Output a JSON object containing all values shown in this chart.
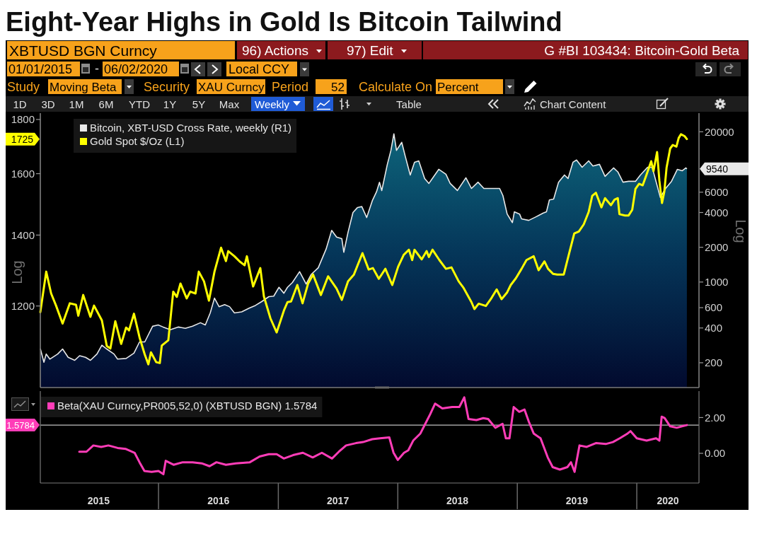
{
  "chart_data": [
    {
      "type": "area",
      "title": "Eight-Year Highs in Gold Is Bitcoin Tailwind",
      "subtitle": "G #BI 103434: Bitcoin-Gold Beta",
      "annotations": [
        "XBTUSD BGN Curncy",
        "96) Actions",
        "97) Edit",
        "01/01/2015",
        "-",
        "06/02/2020",
        "Local CCY",
        "Study",
        "Moving Beta",
        "Security",
        "XAU Curncy",
        "Period",
        "52",
        "Calculate On",
        "Percent",
        "1D",
        "3D",
        "1M",
        "6M",
        "YTD",
        "1Y",
        "5Y",
        "Max",
        "Weekly",
        "Table",
        "Chart Content"
      ],
      "xlim": [
        "2015-01-05",
        "2020-07-09"
      ],
      "tick_labels": "y",
      "ylim": [
        122,
        29000
      ],
      "yticks": [
        200,
        400,
        600,
        1000,
        2000,
        4000,
        6000,
        9540,
        20000
      ],
      "ylabel": "Log",
      "log": true,
      "legend": "top left",
      "series": [
        {
          "name": "Bitcoin, XBT-USD Cross Rate, weekly (R1)",
          "color": "#e8e8e8",
          "x": [
            "2015-01-05",
            "2015-01-16",
            "2015-01-23",
            "2015-02-03",
            "2015-02-27",
            "2015-03-14",
            "2015-03-31",
            "2015-04-20",
            "2015-05-05",
            "2015-05-23",
            "2015-06-07",
            "2015-06-27",
            "2015-07-12",
            "2015-07-27",
            "2015-08-18",
            "2015-08-29",
            "2015-09-24",
            "2015-10-18",
            "2015-11-04",
            "2015-11-20",
            "2015-12-14",
            "2015-12-31",
            "2016-01-15",
            "2016-02-06",
            "2016-03-01",
            "2016-03-23",
            "2016-04-14",
            "2016-05-08",
            "2016-05-23",
            "2016-06-07",
            "2016-06-20",
            "2016-07-04",
            "2016-07-21",
            "2016-08-05",
            "2016-08-20",
            "2016-09-11",
            "2016-10-05",
            "2016-10-23",
            "2016-11-11",
            "2016-12-03",
            "2016-12-18",
            "2017-01-03",
            "2017-01-18",
            "2017-01-29",
            "2017-02-13",
            "2017-03-07",
            "2017-03-27",
            "2017-04-11",
            "2017-05-03",
            "2017-05-27",
            "2017-06-13",
            "2017-06-28",
            "2017-07-14",
            "2017-07-20",
            "2017-08-02",
            "2017-08-17",
            "2017-08-31",
            "2017-09-13",
            "2017-09-28",
            "2017-10-15",
            "2017-10-28",
            "2017-11-06",
            "2017-11-13",
            "2017-11-30",
            "2017-12-11",
            "2017-12-20",
            "2017-12-28",
            "2018-01-13",
            "2018-01-24",
            "2018-02-08",
            "2018-02-21",
            "2018-03-06",
            "2018-03-24",
            "2018-04-06",
            "2018-05-06",
            "2018-05-28",
            "2018-06-10",
            "2018-07-02",
            "2018-07-28",
            "2018-08-14",
            "2018-09-03",
            "2018-09-21",
            "2018-10-12",
            "2018-11-08",
            "2018-11-18",
            "2018-12-01",
            "2018-12-17",
            "2018-12-23",
            "2019-01-08",
            "2019-01-14",
            "2019-02-05",
            "2019-02-27",
            "2019-03-20",
            "2019-03-31",
            "2019-04-09",
            "2019-04-22",
            "2019-05-07",
            "2019-05-25",
            "2019-06-05",
            "2019-06-20",
            "2019-07-01",
            "2019-07-18",
            "2019-08-07",
            "2019-08-20",
            "2019-09-09",
            "2019-09-26",
            "2019-10-22",
            "2019-11-04",
            "2019-11-20",
            "2019-12-07",
            "2019-12-28",
            "2020-01-12",
            "2020-02-03",
            "2020-02-17",
            "2020-03-13",
            "2020-03-29",
            "2020-04-16",
            "2020-05-04",
            "2020-05-19",
            "2020-05-30",
            "2020-06-02"
          ],
          "values": [
            265,
            202,
            238,
            215,
            238,
            263,
            223,
            210,
            230,
            223,
            210,
            238,
            284,
            263,
            238,
            215,
            218,
            242,
            303,
            303,
            414,
            425,
            408,
            386,
            408,
            397,
            414,
            444,
            425,
            540,
            725,
            612,
            637,
            612,
            540,
            551,
            596,
            627,
            677,
            747,
            755,
            900,
            800,
            900,
            990,
            1230,
            960,
            1160,
            1330,
            1930,
            2800,
            2450,
            2370,
            1810,
            2700,
            4000,
            4420,
            4500,
            3620,
            5050,
            6050,
            7300,
            6200,
            10450,
            13800,
            19200,
            13800,
            16200,
            12200,
            8450,
            10900,
            11200,
            7880,
            7140,
            9460,
            8570,
            7140,
            6200,
            7990,
            6460,
            7320,
            6460,
            6460,
            6460,
            5610,
            3880,
            3270,
            4050,
            3880,
            3520,
            3420,
            3670,
            3940,
            4050,
            5140,
            5230,
            7320,
            8450,
            7880,
            10900,
            11400,
            9860,
            11200,
            10100,
            10450,
            8220,
            9730,
            9000,
            7320,
            7450,
            7450,
            8450,
            9860,
            9860,
            5400,
            6460,
            7450,
            9460,
            9200,
            9730,
            9540
          ]
        }
      ]
    },
    {
      "type": "line",
      "xlim": [
        "2015-01-05",
        "2020-07-09"
      ],
      "tick_labels": "y",
      "ylim": [
        1005,
        1825
      ],
      "yticks": [
        1200,
        1400,
        1600,
        1725,
        1800
      ],
      "ylabel": "Log",
      "log": true,
      "legend": "top left",
      "series": [
        {
          "name": "Gold Spot $/Oz (L1)",
          "color": "#ffff00",
          "x": [
            "2015-01-05",
            "2015-01-23",
            "2015-02-07",
            "2015-02-22",
            "2015-03-14",
            "2015-04-05",
            "2015-04-24",
            "2015-05-01",
            "2015-05-16",
            "2015-06-07",
            "2015-06-18",
            "2015-07-12",
            "2015-07-27",
            "2015-08-07",
            "2015-08-22",
            "2015-09-09",
            "2015-09-24",
            "2015-10-03",
            "2015-10-18",
            "2015-11-04",
            "2015-11-20",
            "2015-12-01",
            "2015-12-09",
            "2015-12-25",
            "2016-01-05",
            "2016-01-11",
            "2016-01-31",
            "2016-02-15",
            "2016-02-26",
            "2016-03-08",
            "2016-03-27",
            "2016-04-07",
            "2016-04-23",
            "2016-05-03",
            "2016-05-19",
            "2016-06-03",
            "2016-06-20",
            "2016-07-10",
            "2016-07-25",
            "2016-08-01",
            "2016-08-20",
            "2016-09-05",
            "2016-09-20",
            "2016-09-27",
            "2016-10-16",
            "2016-11-07",
            "2016-11-18",
            "2016-12-08",
            "2016-12-27",
            "2017-01-18",
            "2017-01-29",
            "2017-02-09",
            "2017-02-28",
            "2017-03-16",
            "2017-04-02",
            "2017-04-17",
            "2017-05-11",
            "2017-06-02",
            "2017-06-28",
            "2017-07-14",
            "2017-08-02",
            "2017-08-20",
            "2017-09-15",
            "2017-10-04",
            "2017-10-17",
            "2017-11-04",
            "2017-11-24",
            "2017-12-15",
            "2018-01-02",
            "2018-01-19",
            "2018-02-04",
            "2018-02-14",
            "2018-02-21",
            "2018-03-15",
            "2018-03-30",
            "2018-04-06",
            "2018-04-17",
            "2018-05-08",
            "2018-05-28",
            "2018-06-14",
            "2018-07-06",
            "2018-07-21",
            "2018-08-14",
            "2018-08-23",
            "2018-09-05",
            "2018-09-27",
            "2018-10-12",
            "2018-10-30",
            "2018-11-14",
            "2018-12-01",
            "2018-12-12",
            "2018-12-28",
            "2019-01-14",
            "2019-01-29",
            "2019-02-20",
            "2019-03-07",
            "2019-03-25",
            "2019-04-05",
            "2019-04-20",
            "2019-05-03",
            "2019-05-23",
            "2019-06-09",
            "2019-06-24",
            "2019-07-08",
            "2019-07-23",
            "2019-08-07",
            "2019-08-18",
            "2019-08-29",
            "2019-09-15",
            "2019-09-26",
            "2019-10-14",
            "2019-10-25",
            "2019-11-04",
            "2019-11-09",
            "2019-11-26",
            "2019-12-07",
            "2019-12-18",
            "2019-12-28",
            "2020-01-08",
            "2020-01-19",
            "2020-01-30",
            "2020-02-14",
            "2020-02-21",
            "2020-03-03",
            "2020-03-10",
            "2020-03-18",
            "2020-03-25",
            "2020-04-01",
            "2020-04-12",
            "2020-04-20",
            "2020-05-01",
            "2020-05-08",
            "2020-05-15",
            "2020-05-26",
            "2020-06-02"
          ],
          "values": [
            1184,
            1293,
            1233,
            1201,
            1155,
            1207,
            1203,
            1175,
            1229,
            1172,
            1201,
            1163,
            1100,
            1094,
            1161,
            1105,
            1145,
            1138,
            1180,
            1121,
            1080,
            1057,
            1085,
            1062,
            1060,
            1101,
            1114,
            1238,
            1224,
            1260,
            1220,
            1238,
            1233,
            1293,
            1266,
            1214,
            1293,
            1362,
            1323,
            1352,
            1337,
            1322,
            1311,
            1337,
            1252,
            1303,
            1225,
            1168,
            1133,
            1188,
            1210,
            1212,
            1256,
            1207,
            1260,
            1285,
            1229,
            1280,
            1246,
            1216,
            1266,
            1285,
            1346,
            1299,
            1303,
            1273,
            1301,
            1256,
            1307,
            1341,
            1356,
            1326,
            1356,
            1328,
            1352,
            1335,
            1356,
            1326,
            1301,
            1305,
            1266,
            1248,
            1210,
            1192,
            1206,
            1200,
            1218,
            1244,
            1218,
            1236,
            1256,
            1275,
            1301,
            1326,
            1337,
            1297,
            1322,
            1301,
            1287,
            1285,
            1285,
            1348,
            1405,
            1411,
            1433,
            1472,
            1525,
            1535,
            1487,
            1517,
            1494,
            1512,
            1517,
            1465,
            1461,
            1461,
            1479,
            1548,
            1565,
            1560,
            1594,
            1644,
            1609,
            1677,
            1576,
            1501,
            1538,
            1621,
            1690,
            1703,
            1697,
            1729,
            1743,
            1736,
            1725
          ]
        }
      ]
    },
    {
      "type": "line",
      "xlim": [
        "2015-01-05",
        "2020-07-09"
      ],
      "xticks": [
        {
          "value": "2015-07-02",
          "label": "2015"
        },
        {
          "value": "2016-01-01",
          "label": null
        },
        {
          "value": "2016-07-02",
          "label": "2016"
        },
        {
          "value": "2017-01-01",
          "label": null
        },
        {
          "value": "2017-07-02",
          "label": "2017"
        },
        {
          "value": "2018-01-01",
          "label": null
        },
        {
          "value": "2018-07-02",
          "label": "2018"
        },
        {
          "value": "2019-01-01",
          "label": null
        },
        {
          "value": "2019-07-02",
          "label": "2019"
        },
        {
          "value": "2020-01-01",
          "label": null
        },
        {
          "value": "2020-04-05",
          "label": "2020"
        }
      ],
      "ylim": [
        -1.66,
        3.48
      ],
      "yticks": [
        {
          "value": 0,
          "label": "0.00"
        },
        {
          "value": 2,
          "label": "2.00"
        }
      ],
      "ref_lines": [
        {
          "axis": "y",
          "value": 1.5784,
          "label": "1.5784",
          "color": "#c0c0c0"
        }
      ],
      "legend": "top left",
      "series": [
        {
          "name": "Beta(XAU Curncy,PR005,52,0) (XBTUSD BGN) 1.5784",
          "color": "#ff3db8",
          "x": [
            "2015-05-04",
            "2015-05-26",
            "2015-06-16",
            "2015-07-10",
            "2015-08-01",
            "2015-08-29",
            "2015-09-22",
            "2015-10-20",
            "2015-11-04",
            "2015-11-19",
            "2015-12-11",
            "2016-01-01",
            "2016-01-16",
            "2016-01-23",
            "2016-02-16",
            "2016-03-15",
            "2016-04-14",
            "2016-05-12",
            "2016-06-05",
            "2016-06-26",
            "2016-07-25",
            "2016-08-24",
            "2016-10-06",
            "2016-11-05",
            "2016-12-03",
            "2016-12-27",
            "2017-01-18",
            "2017-02-15",
            "2017-03-17",
            "2017-04-16",
            "2017-05-14",
            "2017-06-14",
            "2017-07-05",
            "2017-07-27",
            "2017-08-26",
            "2017-09-17",
            "2017-10-15",
            "2017-11-08",
            "2017-12-06",
            "2017-12-19",
            "2018-01-01",
            "2018-01-20",
            "2018-02-02",
            "2018-02-17",
            "2018-03-11",
            "2018-03-26",
            "2018-04-10",
            "2018-04-25",
            "2018-05-17",
            "2018-06-16",
            "2018-07-08",
            "2018-07-23",
            "2018-08-05",
            "2018-08-29",
            "2018-09-19",
            "2018-10-04",
            "2018-10-26",
            "2018-11-17",
            "2018-11-27",
            "2018-12-08",
            "2018-12-21",
            "2019-01-07",
            "2019-01-23",
            "2019-02-05",
            "2019-02-20",
            "2019-03-13",
            "2019-04-04",
            "2019-04-19",
            "2019-05-11",
            "2019-06-03",
            "2019-06-14",
            "2019-06-25",
            "2019-07-10",
            "2019-08-01",
            "2019-08-29",
            "2019-09-28",
            "2019-10-20",
            "2019-11-10",
            "2019-12-04",
            "2019-12-13",
            "2020-01-01",
            "2020-01-31",
            "2020-02-29",
            "2020-03-10",
            "2020-03-17",
            "2020-03-26",
            "2020-04-12",
            "2020-05-02",
            "2020-05-18",
            "2020-06-02"
          ],
          "values": [
            0.09,
            0.09,
            0.44,
            0.36,
            0.44,
            0.3,
            0.25,
            0.03,
            -0.5,
            -0.99,
            -1.04,
            -0.99,
            -1.17,
            -0.42,
            -0.64,
            -0.5,
            -0.5,
            -0.56,
            -0.72,
            -0.5,
            -0.64,
            -0.56,
            -0.5,
            -0.18,
            -0.05,
            -0.05,
            -0.29,
            -0.1,
            0.03,
            -0.23,
            0.03,
            -0.29,
            0.09,
            0.44,
            0.57,
            0.63,
            0.79,
            0.84,
            0.89,
            0.03,
            -0.37,
            0.03,
            0.17,
            0.71,
            1.11,
            1.65,
            2.19,
            2.78,
            2.51,
            2.59,
            2.59,
            3.13,
            1.92,
            1.86,
            1.97,
            1.92,
            1.43,
            1.65,
            0.84,
            0.84,
            2.59,
            2.32,
            2.45,
            1.78,
            1.11,
            0.84,
            -0.23,
            -0.77,
            -0.91,
            -0.77,
            -0.5,
            -1.04,
            0.44,
            0.36,
            0.57,
            0.52,
            0.63,
            0.84,
            1.11,
            1.24,
            0.84,
            0.71,
            0.84,
            0.71,
            2.05,
            1.97,
            1.51,
            1.43,
            1.51,
            1.5784
          ]
        }
      ]
    }
  ]
}
